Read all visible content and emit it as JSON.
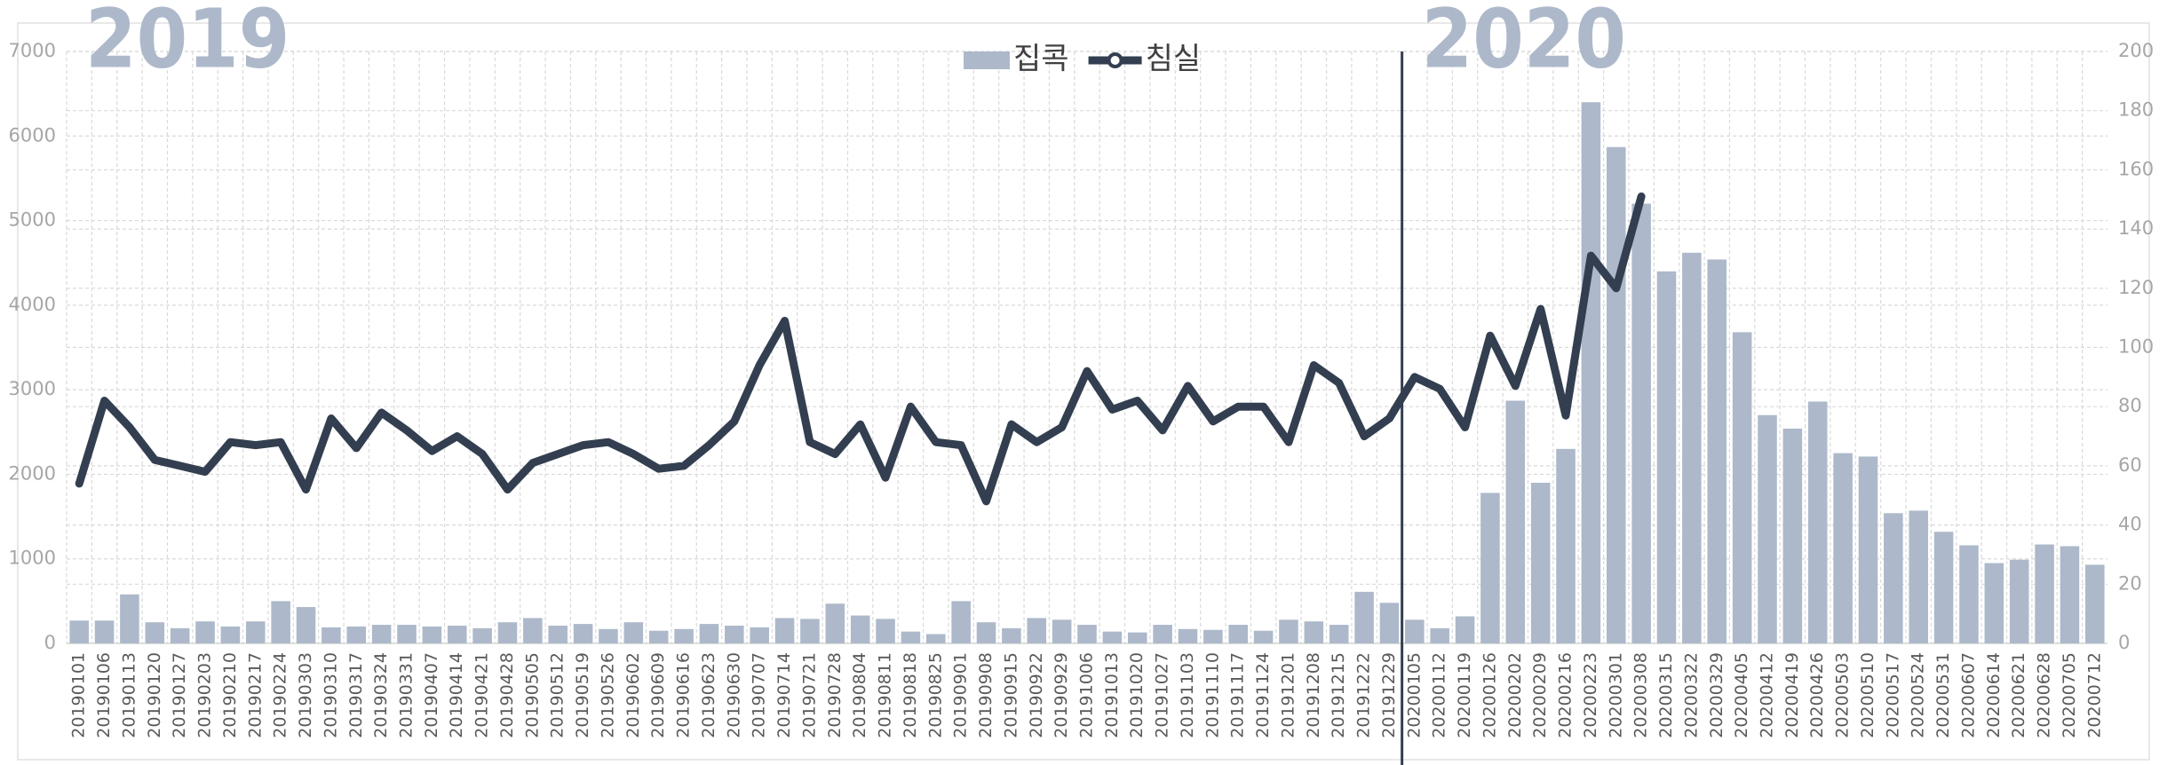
{
  "chart_data": {
    "type": "bar",
    "categories": [
      "20190101",
      "20190106",
      "20190113",
      "20190120",
      "20190127",
      "20190203",
      "20190210",
      "20190217",
      "20190224",
      "20190303",
      "20190310",
      "20190317",
      "20190324",
      "20190331",
      "20190407",
      "20190414",
      "20190421",
      "20190428",
      "20190505",
      "20190512",
      "20190519",
      "20190526",
      "20190602",
      "20190609",
      "20190616",
      "20190623",
      "20190630",
      "20190707",
      "20190714",
      "20190721",
      "20190728",
      "20190804",
      "20190811",
      "20190818",
      "20190825",
      "20190901",
      "20190908",
      "20190915",
      "20190922",
      "20190929",
      "20191006",
      "20191013",
      "20191020",
      "20191027",
      "20191103",
      "20191110",
      "20191117",
      "20191124",
      "20191201",
      "20191208",
      "20191215",
      "20191222",
      "20191229",
      "20200105",
      "20200112",
      "20200119",
      "20200126",
      "20200202",
      "20200209",
      "20200216",
      "20200223",
      "20200301",
      "20200308",
      "20200315",
      "20200322",
      "20200329",
      "20200405",
      "20200412",
      "20200419",
      "20200426",
      "20200503",
      "20200510",
      "20200517",
      "20200524",
      "20200531",
      "20200607",
      "20200614",
      "20200621",
      "20200628",
      "20200705",
      "20200712"
    ],
    "series": [
      {
        "name": "집콕",
        "type": "bar",
        "axis": "y",
        "color": "#adb9ca",
        "values": [
          270,
          270,
          580,
          250,
          180,
          260,
          200,
          260,
          500,
          430,
          190,
          200,
          220,
          220,
          200,
          210,
          180,
          250,
          300,
          210,
          230,
          170,
          250,
          150,
          170,
          230,
          210,
          190,
          300,
          290,
          470,
          330,
          290,
          140,
          110,
          500,
          250,
          180,
          300,
          280,
          220,
          140,
          130,
          220,
          170,
          160,
          220,
          150,
          280,
          260,
          220,
          610,
          480,
          280,
          180,
          320,
          1780,
          2870,
          1900,
          2300,
          6400,
          5870,
          5200,
          4400,
          4620,
          4540,
          3680,
          2700,
          2540,
          2860,
          2250,
          2210,
          1540,
          1570,
          1320,
          1160,
          950,
          990,
          1170,
          1150,
          930
        ]
      },
      {
        "name": "침실",
        "type": "line",
        "axis": "y2",
        "color": "#333f50",
        "values": [
          54,
          82,
          73,
          62,
          60,
          58,
          68,
          67,
          68,
          52,
          76,
          66,
          78,
          72,
          65,
          70,
          64,
          52,
          61,
          64,
          67,
          68,
          64,
          59,
          60,
          67,
          75,
          94,
          109,
          68,
          64,
          74,
          56,
          80,
          68,
          67,
          48,
          74,
          68,
          73,
          92,
          79,
          82,
          72,
          87,
          75,
          80,
          80,
          68,
          94,
          88,
          70,
          76,
          90,
          86,
          73,
          104,
          87,
          113,
          77,
          131,
          120,
          151,
          null,
          null,
          null,
          null,
          null,
          null,
          null,
          null,
          null,
          null,
          null,
          null,
          null,
          null,
          null,
          null,
          null,
          null
        ]
      }
    ],
    "ylim": [
      0,
      7000
    ],
    "yticks": [
      0,
      1000,
      2000,
      3000,
      4000,
      5000,
      6000,
      7000
    ],
    "y2lim": [
      0,
      200
    ],
    "y2ticks": [
      0,
      20,
      40,
      60,
      80,
      100,
      120,
      140,
      160,
      180,
      200
    ],
    "grid": true,
    "annotations": [
      "2019",
      "2020"
    ]
  }
}
